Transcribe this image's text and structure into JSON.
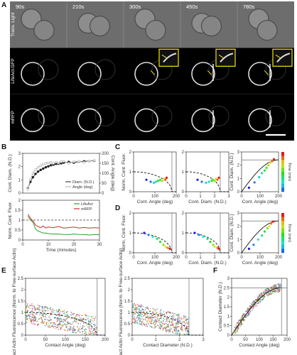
{
  "panels": {
    "A": "A",
    "B": "B",
    "C": "C",
    "D": "D",
    "E": "E",
    "F": "F"
  },
  "panel_a": {
    "time_labels": [
      "90s",
      "210s",
      "300s",
      "450s",
      "780s"
    ],
    "row_labels": [
      "Trans. Light",
      "LifeAct-GFP",
      "mRFP"
    ],
    "cells": [
      {
        "rowIndex": 0,
        "kind": "trans"
      },
      {
        "rowIndex": 1,
        "kind": "fluor"
      },
      {
        "rowIndex": 2,
        "kind": "fluor"
      }
    ],
    "colors": {
      "background": "#000000",
      "trans_bg": "#6d6d6d",
      "inset_border": "#f2e600",
      "arrow": "#f2e600"
    }
  },
  "chart_data": [
    {
      "panel": "B-top",
      "type": "line",
      "xlabel": "",
      "ylabel": "Cont. Diam. (N.D.)",
      "ylabel_right": "Cont. Angle (deg)",
      "ylim": [
        0,
        3
      ],
      "ylim_right": [
        0,
        200
      ],
      "yticks": [
        0,
        1,
        2,
        3
      ],
      "yticks_right": [
        0,
        50,
        100,
        150,
        200
      ],
      "xlim": [
        0,
        30
      ],
      "legend": "bottom-right",
      "series": [
        {
          "name": "Diam. (N.D.)",
          "color": "#222222",
          "axis": "left",
          "marker": "filled",
          "x": [
            2,
            3,
            4,
            5,
            6,
            7,
            8,
            9,
            10,
            11,
            12,
            13,
            14,
            15,
            16,
            18,
            20,
            22,
            24,
            26,
            28
          ],
          "values": [
            0.35,
            0.85,
            1.2,
            1.45,
            1.62,
            1.75,
            1.85,
            1.95,
            2.02,
            2.1,
            2.15,
            2.2,
            2.22,
            2.25,
            2.3,
            2.35,
            2.3,
            2.38,
            2.4,
            2.42,
            2.45
          ]
        },
        {
          "name": "Angle (deg)",
          "color": "#aaaaaa",
          "axis": "right",
          "marker": "hollow",
          "x": [
            2,
            3,
            4,
            5,
            6,
            7,
            8,
            9,
            10,
            11,
            12,
            13,
            14,
            15,
            16,
            18,
            20,
            22,
            24,
            26,
            28
          ],
          "values": [
            20,
            70,
            100,
            118,
            130,
            138,
            145,
            150,
            152,
            155,
            150,
            156,
            152,
            158,
            160,
            150,
            158,
            160,
            155,
            162,
            165
          ]
        }
      ]
    },
    {
      "panel": "B-bottom",
      "type": "line",
      "xlabel": "Time (minutes)",
      "ylabel": "Norm. Cont. Fluor.",
      "ylim": [
        0,
        2
      ],
      "yticks": [
        0,
        0.5,
        1,
        1.5,
        2
      ],
      "xlim": [
        0,
        30
      ],
      "xticks": [
        0,
        10,
        20,
        30
      ],
      "reference_line": 1,
      "legend": "top-right",
      "series": [
        {
          "name": "LifeAct",
          "color": "#2ca02c",
          "x": [
            2,
            3,
            4,
            5,
            6,
            7,
            8,
            9,
            10,
            12,
            14,
            16,
            18,
            20,
            22,
            24,
            26,
            28,
            30
          ],
          "values": [
            1.2,
            1.0,
            0.9,
            0.55,
            0.45,
            0.4,
            0.35,
            0.35,
            0.32,
            0.3,
            0.3,
            0.28,
            0.27,
            0.3,
            0.28,
            0.27,
            0.25,
            0.28,
            0.26
          ]
        },
        {
          "name": "mRFP",
          "color": "#d62728",
          "x": [
            2,
            3,
            4,
            5,
            6,
            7,
            8,
            9,
            10,
            12,
            14,
            16,
            18,
            20,
            22,
            24,
            26,
            28,
            30
          ],
          "values": [
            1.3,
            1.1,
            0.95,
            0.75,
            0.68,
            0.62,
            0.7,
            0.6,
            0.65,
            0.62,
            0.68,
            0.6,
            0.62,
            0.65,
            0.6,
            0.63,
            0.6,
            0.62,
            0.6
          ]
        }
      ]
    },
    {
      "panel": "C",
      "type": "scatter",
      "subplots": [
        {
          "xlabel": "Cont. Angle (deg)",
          "ylabel": "Norm. Cont. Fluor.",
          "xlim": [
            0,
            200
          ],
          "ylim": [
            0,
            2
          ],
          "xticks": [
            0,
            100,
            200
          ],
          "yticks": [
            0,
            1,
            2
          ],
          "vline": 180,
          "curve": "dashed",
          "x": [
            60,
            80,
            95,
            105,
            115,
            125,
            135,
            145,
            150,
            155
          ],
          "values": [
            0.6,
            0.5,
            0.45,
            0.5,
            0.55,
            0.6,
            0.55,
            0.65,
            0.6,
            0.7
          ]
        },
        {
          "xlabel": "Cont. Diam. (N.D.)",
          "ylabel": "",
          "xlim": [
            0,
            3
          ],
          "ylim": [
            0,
            2
          ],
          "xticks": [
            0,
            1,
            2,
            3
          ],
          "yticks": [
            0,
            1,
            2
          ],
          "vline": 2.4,
          "curve": "dashed",
          "x": [
            0.8,
            1.1,
            1.4,
            1.6,
            1.8,
            1.9,
            2.0,
            2.1,
            2.2,
            2.3
          ],
          "values": [
            0.6,
            0.5,
            0.45,
            0.5,
            0.55,
            0.6,
            0.55,
            0.65,
            0.6,
            0.7
          ]
        },
        {
          "xlabel": "Cont. Angle (deg)",
          "ylabel": "Cont. Diam. (N.D.)",
          "xlim": [
            0,
            200
          ],
          "ylim": [
            0,
            3
          ],
          "xticks": [
            0,
            100,
            200
          ],
          "yticks": [
            0,
            1,
            2,
            3
          ],
          "hline": 2.4,
          "curve": "solid",
          "colorbar_label": "Time (min)",
          "x": [
            40,
            70,
            95,
            110,
            125,
            135,
            145,
            155,
            165,
            175
          ],
          "values": [
            0.3,
            0.7,
            1.1,
            1.4,
            1.6,
            1.8,
            2.0,
            2.2,
            2.3,
            2.45
          ]
        }
      ]
    },
    {
      "panel": "D",
      "type": "scatter",
      "subplots": [
        {
          "xlabel": "Cont. Angle (deg)",
          "ylabel": "Norm. Cont. Fluor.",
          "xlim": [
            0,
            200
          ],
          "ylim": [
            0,
            2
          ],
          "xticks": [
            0,
            100,
            200
          ],
          "yticks": [
            0,
            1,
            2
          ],
          "vline": 180,
          "curve": "dashed",
          "x": [
            50,
            70,
            90,
            110,
            125,
            140,
            150,
            160,
            170
          ],
          "values": [
            1.0,
            0.9,
            0.8,
            0.7,
            0.55,
            0.4,
            0.3,
            0.25,
            0.2
          ]
        },
        {
          "xlabel": "Cont. Diam. (N.D.)",
          "ylabel": "",
          "xlim": [
            0,
            3
          ],
          "ylim": [
            0,
            2
          ],
          "xticks": [
            0,
            1,
            2,
            3
          ],
          "yticks": [
            0,
            1,
            2
          ],
          "vline": 2.4,
          "curve": "dashed",
          "x": [
            0.6,
            0.9,
            1.2,
            1.5,
            1.7,
            1.9,
            2.0,
            2.2,
            2.3
          ],
          "values": [
            1.0,
            0.9,
            0.8,
            0.7,
            0.55,
            0.4,
            0.3,
            0.25,
            0.2
          ]
        },
        {
          "xlabel": "Cont. Angle (deg)",
          "ylabel": "Cont. Diam. (N.D.)",
          "xlim": [
            0,
            200
          ],
          "ylim": [
            0,
            3
          ],
          "xticks": [
            0,
            100,
            200
          ],
          "yticks": [
            0,
            1,
            2,
            3
          ],
          "hline": 2.4,
          "curve": "solid",
          "colorbar_label": "Time (min)",
          "x": [
            40,
            65,
            90,
            110,
            125,
            140,
            150,
            160,
            170
          ],
          "values": [
            0.3,
            0.6,
            1.0,
            1.3,
            1.6,
            1.85,
            2.0,
            2.2,
            2.35
          ]
        }
      ]
    },
    {
      "panel": "E",
      "type": "scatter",
      "subplots": [
        {
          "xlabel": "Contact Angle (deg)",
          "ylabel": "Contact Actin Fluorescence (Norm. to Free-surface Actin)",
          "xlim": [
            0,
            200
          ],
          "ylim": [
            0,
            2.5
          ],
          "xticks": [
            0,
            50,
            100,
            150,
            200
          ],
          "yticks": [
            0,
            0.5,
            1,
            1.5,
            2,
            2.5
          ],
          "vline": 180,
          "curve": "dashed"
        },
        {
          "xlabel": "Contact Diameter (N.D.)",
          "ylabel": "Contact Actin Fluorescence (Norm. to Free-surface Actin)",
          "xlim": [
            0,
            3
          ],
          "ylim": [
            0,
            2.5
          ],
          "xticks": [
            0,
            1,
            2,
            3
          ],
          "yticks": [
            0,
            0.5,
            1,
            1.5,
            2,
            2.5
          ],
          "vline": 2.4,
          "curve": "dashed"
        }
      ]
    },
    {
      "panel": "F",
      "type": "scatter",
      "xlabel": "Contact Angle (deg)",
      "ylabel": "Contact Diameter (N.D.)",
      "xlim": [
        0,
        200
      ],
      "ylim": [
        0,
        3
      ],
      "xticks": [
        0,
        50,
        100,
        150,
        200
      ],
      "yticks": [
        0,
        0.5,
        1,
        1.5,
        2,
        2.5,
        3
      ],
      "hline": 2.5,
      "vline": 180,
      "curve": "solid"
    }
  ],
  "colors": {
    "scatter_palette": [
      "#2ca02c",
      "#9467bd",
      "#ff7f0e",
      "#e377c2",
      "#8c564b",
      "#17becf",
      "#d62728",
      "#bcbd22",
      "#1f77b4"
    ]
  }
}
